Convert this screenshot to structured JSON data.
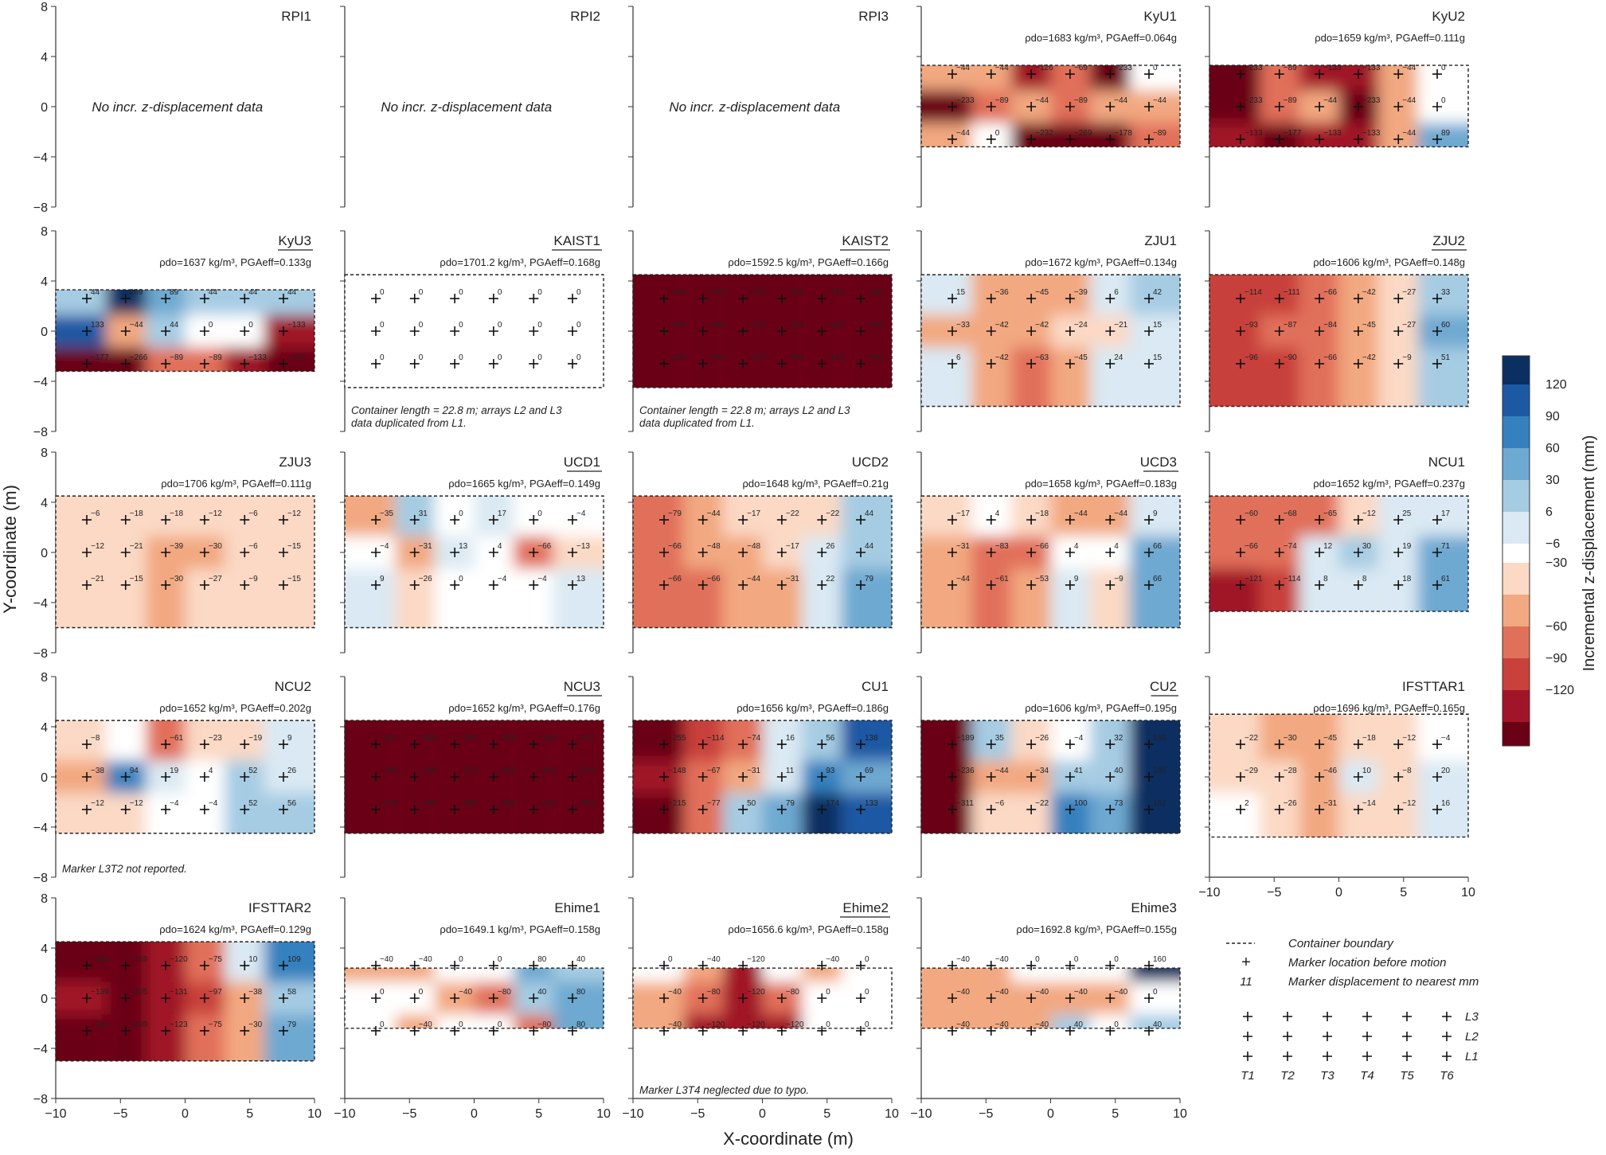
{
  "figure": {
    "xlabel": "X-coordinate (m)",
    "ylabel": "Y-coordinate (m)",
    "colorbar_label": "Incremental z-displacement (mm)",
    "colorbar_ticks": [
      "120",
      "90",
      "60",
      "30",
      "6",
      "−6",
      "−30",
      "−60",
      "−90",
      "−120"
    ],
    "x_ticks": [
      "−10",
      "−5",
      "0",
      "5",
      "10"
    ],
    "y_ticks": [
      "8",
      "4",
      "0",
      "−4",
      "−8"
    ],
    "colors": {
      "band_pos": [
        "#dae9f3",
        "#a6cce3",
        "#6ea9d1",
        "#3581bf",
        "#1d59a3",
        "#0b2f61"
      ],
      "white": "#ffffff",
      "band_neg": [
        "#fbd9c5",
        "#f2a880",
        "#e1705a",
        "#c8413b",
        "#a01628",
        "#6a0115"
      ]
    }
  },
  "legend": {
    "boundary": "Container boundary",
    "marker": "Marker location before motion",
    "value_sample": "11",
    "value": "Marker displacement to nearest mm",
    "rows": [
      "L3",
      "L2",
      "L1"
    ],
    "cols": [
      "T1",
      "T2",
      "T3",
      "T4",
      "T5",
      "T6"
    ]
  },
  "chart_data": {
    "type": "heatmap",
    "x_range": [
      -10,
      10
    ],
    "y_range": [
      -8,
      8
    ],
    "marker_x": [
      -7.6,
      -4.6,
      -1.5,
      1.5,
      4.6,
      7.6
    ],
    "marker_y": [
      2.6,
      0,
      -2.6
    ],
    "panels": [
      {
        "title": "RPI1",
        "underline": false,
        "info": "",
        "note": "No incr. z-displacement data",
        "values": null
      },
      {
        "title": "RPI2",
        "underline": false,
        "info": "",
        "note": "No incr. z-displacement data",
        "values": null
      },
      {
        "title": "RPI3",
        "underline": false,
        "info": "",
        "note": "No incr. z-displacement data",
        "values": null
      },
      {
        "title": "KyU1",
        "underline": false,
        "info": "ρdo=1683 kg/m³, PGAeff=0.064g",
        "note": "",
        "container": [
          -3.2,
          3.3
        ],
        "values": [
          [
            -44,
            -44,
            -126,
            -69,
            -233,
            0
          ],
          [
            -233,
            -89,
            -44,
            -89,
            -44,
            -44
          ],
          [
            -44,
            0,
            -232,
            -269,
            -178,
            -89
          ]
        ]
      },
      {
        "title": "KyU2",
        "underline": false,
        "info": "ρdo=1659 kg/m³, PGAeff=0.111g",
        "note": "",
        "container": [
          -3.2,
          3.3
        ],
        "values": [
          [
            -233,
            -89,
            -133,
            -133,
            -44,
            0
          ],
          [
            -233,
            -89,
            -44,
            -233,
            -44,
            0
          ],
          [
            -133,
            -177,
            -133,
            -133,
            -44,
            89
          ]
        ]
      },
      {
        "title": "KyU3",
        "underline": true,
        "info": "ρdo=1637 kg/m³, PGAeff=0.133g",
        "note": "",
        "container": [
          -3.2,
          3.3
        ],
        "values": [
          [
            44,
            269,
            89,
            44,
            44,
            44
          ],
          [
            133,
            -44,
            44,
            0,
            0,
            -133
          ],
          [
            -177,
            -266,
            -89,
            -89,
            -133,
            -222
          ]
        ]
      },
      {
        "title": "KAIST1",
        "underline": true,
        "info": "ρdo=1701.2 kg/m³, PGAeff=0.168g",
        "note": "Container length = 22.8 m; arrays L2 and L3 data duplicated from L1.",
        "container": [
          -4.5,
          4.5
        ],
        "values": [
          [
            0,
            0,
            0,
            0,
            0,
            0
          ],
          [
            0,
            0,
            0,
            0,
            0,
            0
          ],
          [
            0,
            0,
            0,
            0,
            0,
            0
          ]
        ]
      },
      {
        "title": "KAIST2",
        "underline": true,
        "info": "ρdo=1592.5 kg/m³, PGAeff=0.166g",
        "note": "Container length = 22.8 m; arrays L2 and L3 data duplicated from L1.",
        "container": [
          -4.5,
          4.5
        ],
        "values": [
          [
            -400,
            -240,
            -172,
            -254,
            -190,
            -190
          ],
          [
            -400,
            -240,
            -172,
            -254,
            -190,
            -190
          ],
          [
            -400,
            -240,
            -172,
            -254,
            -190,
            -190
          ]
        ]
      },
      {
        "title": "ZJU1",
        "underline": false,
        "info": "ρdo=1672 kg/m³, PGAeff=0.134g",
        "note": "",
        "container": [
          -6,
          4.5
        ],
        "values": [
          [
            15,
            -36,
            -45,
            -39,
            6,
            42
          ],
          [
            -33,
            -42,
            -42,
            -24,
            -21,
            15
          ],
          [
            6,
            -42,
            -63,
            -45,
            24,
            15
          ]
        ]
      },
      {
        "title": "ZJU2",
        "underline": true,
        "info": "ρdo=1606 kg/m³, PGAeff=0.148g",
        "note": "",
        "container": [
          -6,
          4.5
        ],
        "values": [
          [
            -114,
            -111,
            -66,
            -42,
            -27,
            33
          ],
          [
            -93,
            -87,
            -84,
            -45,
            -27,
            60
          ],
          [
            -96,
            -90,
            -66,
            -42,
            -9,
            51
          ]
        ]
      },
      {
        "title": "ZJU3",
        "underline": false,
        "info": "ρdo=1706 kg/m³, PGAeff=0.111g",
        "note": "",
        "container": [
          -6,
          4.5
        ],
        "values": [
          [
            -6,
            -18,
            -18,
            -12,
            -6,
            -12
          ],
          [
            -12,
            -21,
            -39,
            -30,
            -6,
            -15
          ],
          [
            -21,
            -15,
            -30,
            -27,
            -9,
            -15
          ]
        ]
      },
      {
        "title": "UCD1",
        "underline": true,
        "info": "ρdo=1665 kg/m³, PGAeff=0.149g",
        "note": "",
        "container": [
          -6,
          4.5
        ],
        "values": [
          [
            -35,
            31,
            0,
            17,
            0,
            -4
          ],
          [
            -4,
            -31,
            13,
            4,
            -66,
            -13
          ],
          [
            9,
            -26,
            0,
            -4,
            -4,
            13
          ]
        ]
      },
      {
        "title": "UCD2",
        "underline": false,
        "info": "ρdo=1648 kg/m³, PGAeff=0.21g",
        "note": "",
        "container": [
          -6,
          4.5
        ],
        "values": [
          [
            -79,
            -44,
            -17,
            -22,
            -22,
            44
          ],
          [
            -66,
            -48,
            -48,
            -17,
            26,
            44
          ],
          [
            -66,
            -66,
            -44,
            -31,
            22,
            79
          ]
        ]
      },
      {
        "title": "UCD3",
        "underline": true,
        "info": "ρdo=1658 kg/m³, PGAeff=0.183g",
        "note": "",
        "container": [
          -6,
          4.5
        ],
        "values": [
          [
            -17,
            4,
            -18,
            -44,
            -44,
            9
          ],
          [
            -31,
            -83,
            -66,
            4,
            4,
            66
          ],
          [
            -44,
            -61,
            -53,
            9,
            -9,
            66
          ]
        ]
      },
      {
        "title": "NCU1",
        "underline": false,
        "info": "ρdo=1652 kg/m³, PGAeff=0.237g",
        "note": "",
        "container": [
          -4.7,
          4.5
        ],
        "values": [
          [
            -60,
            -68,
            -65,
            -12,
            25,
            17
          ],
          [
            -66,
            -74,
            12,
            30,
            19,
            71
          ],
          [
            -121,
            -114,
            8,
            8,
            18,
            61
          ]
        ]
      },
      {
        "title": "NCU2",
        "underline": false,
        "info": "ρdo=1652 kg/m³, PGAeff=0.202g",
        "note": "Marker L3T2 not reported.",
        "container": [
          -4.5,
          4.5
        ],
        "values": [
          [
            -8,
            null,
            -61,
            -23,
            -19,
            9
          ],
          [
            -38,
            94,
            19,
            4,
            52,
            26
          ],
          [
            -12,
            -12,
            -4,
            -4,
            52,
            56
          ]
        ]
      },
      {
        "title": "NCU3",
        "underline": true,
        "info": "ρdo=1652 kg/m³, PGAeff=0.176g",
        "note": "",
        "container": [
          -4.5,
          4.5
        ],
        "values": [
          [
            -321,
            -309,
            -326,
            -339,
            -264,
            -217
          ],
          [
            -242,
            -238,
            -273,
            -305,
            -263,
            -234
          ],
          [
            -274,
            -290,
            -255,
            -305,
            -278,
            -253
          ]
        ]
      },
      {
        "title": "CU1",
        "underline": false,
        "info": "ρdo=1656 kg/m³, PGAeff=0.186g",
        "note": "",
        "container": [
          -4.5,
          4.5
        ],
        "values": [
          [
            -255,
            -114,
            -74,
            16,
            56,
            138
          ],
          [
            -148,
            -67,
            -31,
            11,
            93,
            69
          ],
          [
            -215,
            -77,
            50,
            79,
            174,
            133
          ]
        ]
      },
      {
        "title": "CU2",
        "underline": true,
        "info": "ρdo=1606 kg/m³, PGAeff=0.195g",
        "note": "",
        "container": [
          -4.5,
          4.5
        ],
        "values": [
          [
            -189,
            35,
            -26,
            -4,
            32,
            160
          ],
          [
            -236,
            -44,
            -34,
            41,
            40,
            160
          ],
          [
            -311,
            -6,
            -22,
            100,
            73,
            162
          ]
        ]
      },
      {
        "title": "IFSTTAR1",
        "underline": false,
        "info": "ρdo=1696 kg/m³, PGAeff=0.165g",
        "note": "",
        "container": [
          -4.8,
          5
        ],
        "values": [
          [
            -22,
            -30,
            -45,
            -18,
            -12,
            -4
          ],
          [
            -29,
            -28,
            -46,
            10,
            -8,
            20
          ],
          [
            2,
            -26,
            -31,
            -14,
            -12,
            16
          ]
        ]
      },
      {
        "title": "IFSTTAR2",
        "underline": false,
        "info": "ρdo=1624 kg/m³, PGAeff=0.129g",
        "note": "",
        "container": [
          -5,
          4.5
        ],
        "values": [
          [
            -363,
            -169,
            -120,
            -75,
            10,
            109
          ],
          [
            -139,
            -205,
            -131,
            -97,
            -38,
            58
          ],
          [
            -222,
            -209,
            -123,
            -75,
            -30,
            79
          ]
        ]
      },
      {
        "title": "Ehime1",
        "underline": false,
        "info": "ρdo=1649.1 kg/m³, PGAeff=0.158g",
        "note": "",
        "container": [
          -2.4,
          2.4
        ],
        "values": [
          [
            -40,
            -40,
            0,
            0,
            80,
            40
          ],
          [
            0,
            0,
            -40,
            -80,
            40,
            80
          ],
          [
            0,
            -40,
            0,
            0,
            -80,
            80
          ]
        ]
      },
      {
        "title": "Ehime2",
        "underline": true,
        "info": "ρdo=1656.6 kg/m³, PGAeff=0.158g",
        "note": "Marker L3T4 neglected due to typo.",
        "container": [
          -2.4,
          2.4
        ],
        "values": [
          [
            0,
            -40,
            -120,
            null,
            -40,
            0
          ],
          [
            -40,
            -80,
            -120,
            -80,
            0,
            0
          ],
          [
            -40,
            -120,
            -120,
            -120,
            0,
            0
          ]
        ]
      },
      {
        "title": "Ehime3",
        "underline": false,
        "info": "ρdo=1692.8 kg/m³, PGAeff=0.155g",
        "note": "",
        "container": [
          -2.4,
          2.4
        ],
        "values": [
          [
            -40,
            -40,
            0,
            0,
            0,
            160
          ],
          [
            -40,
            -40,
            -40,
            -40,
            -40,
            0
          ],
          [
            -40,
            -40,
            -40,
            40,
            0,
            40
          ]
        ]
      }
    ]
  }
}
